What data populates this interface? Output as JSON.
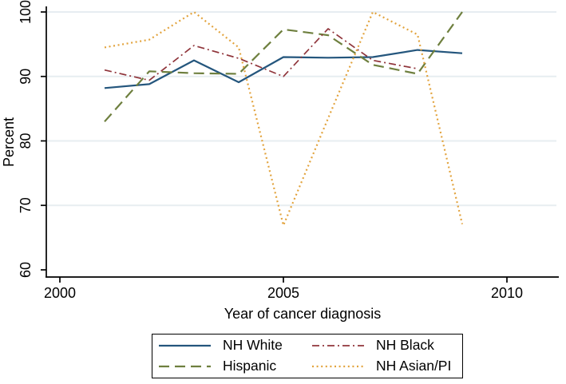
{
  "chart_data": {
    "type": "line",
    "title": "",
    "xlabel": "Year of cancer diagnosis",
    "ylabel": "Percent",
    "xlim": [
      2000,
      2011
    ],
    "ylim": [
      60,
      100
    ],
    "xticks": [
      2000,
      2005,
      2010
    ],
    "yticks": [
      60,
      70,
      80,
      90,
      100
    ],
    "grid": "horizontal-light",
    "legend_position": "bottom-center-boxed",
    "x": [
      2001,
      2002,
      2003,
      2004,
      2005,
      2006,
      2007,
      2008,
      2009
    ],
    "series": [
      {
        "name": "NH White",
        "color": "#24567d",
        "style": "solid",
        "values": [
          88.2,
          88.8,
          92.5,
          89.1,
          93.0,
          92.9,
          93.0,
          94.1,
          93.6
        ]
      },
      {
        "name": "Hispanic",
        "color": "#6e7f3e",
        "style": "longdash",
        "values": [
          83.0,
          90.8,
          90.5,
          90.4,
          97.3,
          96.4,
          91.8,
          90.4,
          100
        ]
      },
      {
        "name": "NH Black",
        "color": "#90353b",
        "style": "dashdot",
        "values": [
          91.0,
          89.4,
          94.8,
          92.8,
          90.0,
          97.4,
          92.5,
          91.2,
          null
        ]
      },
      {
        "name": "NH Asian/PI",
        "color": "#e2a33d",
        "style": "dot",
        "values": [
          94.5,
          95.7,
          100,
          94.5,
          66.9,
          83.5,
          100,
          96.5,
          67.1
        ]
      }
    ]
  },
  "colors": {
    "axis": "#000000",
    "gridline": "#e7edf1",
    "background": "#ffffff"
  }
}
